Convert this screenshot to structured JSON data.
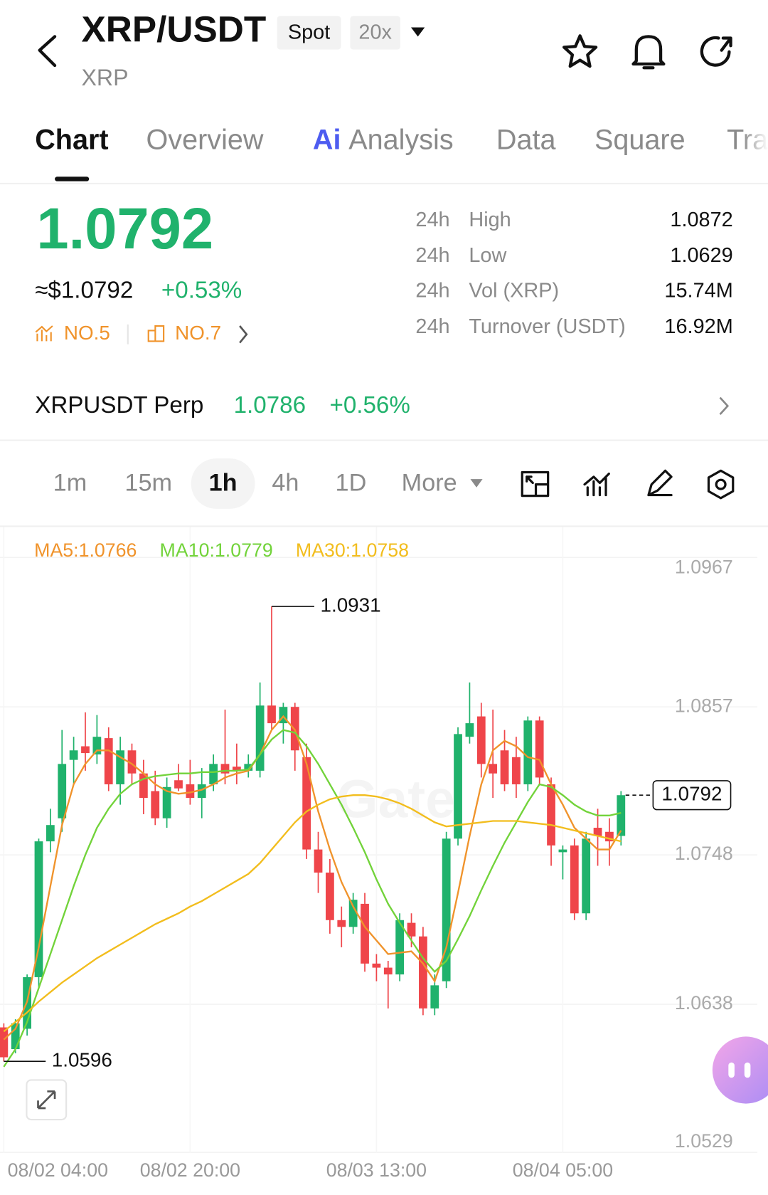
{
  "header": {
    "title": "XRP/USDT",
    "badges": [
      "Spot",
      "20x"
    ],
    "subtitle": "XRP"
  },
  "tabs": {
    "items": [
      "Chart",
      "Overview",
      "Analysis",
      "Data",
      "Square",
      "Tra"
    ],
    "ai_badge": "Ai"
  },
  "price": {
    "last": "1.0792",
    "usd": "≈$1.0792",
    "change": "+0.53%",
    "ranks": [
      "NO.5",
      "NO.7"
    ]
  },
  "stats": {
    "rows": [
      [
        "24h",
        "High",
        "1.0872"
      ],
      [
        "24h",
        "Low",
        "1.0629"
      ],
      [
        "24h",
        "Vol (XRP)",
        "15.74M"
      ],
      [
        "24h",
        "Turnover (USDT)",
        "16.92M"
      ]
    ]
  },
  "perp": {
    "name": "XRPUSDT Perp",
    "price": "1.0786",
    "change": "+0.56%"
  },
  "intervals": {
    "items": [
      "1m",
      "15m",
      "1h",
      "4h",
      "1D",
      "More"
    ],
    "active": 2
  },
  "chart": {
    "type": "candlestick",
    "watermark": "Gate",
    "up_color": "#20b26c",
    "down_color": "#ef454a",
    "ylim": [
      1.0529,
      1.0967
    ],
    "yticks": [
      1.0529,
      1.0638,
      1.0748,
      1.0857,
      1.0967
    ],
    "grid": true,
    "categories": [
      "08/02 04:00",
      null,
      null,
      null,
      null,
      null,
      null,
      null,
      null,
      null,
      null,
      null,
      null,
      null,
      null,
      null,
      "08/02 20:00",
      null,
      null,
      null,
      null,
      null,
      null,
      null,
      null,
      null,
      null,
      null,
      null,
      null,
      null,
      null,
      "08/03 13:00",
      null,
      null,
      null,
      null,
      null,
      null,
      null,
      null,
      null,
      null,
      null,
      null,
      null,
      null,
      null,
      "08/04 05:00",
      null,
      null,
      null,
      null,
      null
    ],
    "candles": [
      {
        "open": 1.0621,
        "high": 1.0624,
        "low": 1.0596,
        "close": 1.0599
      },
      {
        "open": 1.0605,
        "high": 1.0627,
        "low": 1.0602,
        "close": 1.0624
      },
      {
        "open": 1.062,
        "high": 1.066,
        "low": 1.0615,
        "close": 1.0658
      },
      {
        "open": 1.0658,
        "high": 1.076,
        "low": 1.065,
        "close": 1.0758
      },
      {
        "open": 1.0758,
        "high": 1.0782,
        "low": 1.075,
        "close": 1.077
      },
      {
        "open": 1.0775,
        "high": 1.084,
        "low": 1.0765,
        "close": 1.0815
      },
      {
        "open": 1.0818,
        "high": 1.0835,
        "low": 1.08,
        "close": 1.0825
      },
      {
        "open": 1.0828,
        "high": 1.0853,
        "low": 1.081,
        "close": 1.0823
      },
      {
        "open": 1.0822,
        "high": 1.0851,
        "low": 1.0815,
        "close": 1.0835
      },
      {
        "open": 1.0834,
        "high": 1.0842,
        "low": 1.0795,
        "close": 1.08
      },
      {
        "open": 1.08,
        "high": 1.0835,
        "low": 1.0785,
        "close": 1.0825
      },
      {
        "open": 1.0825,
        "high": 1.083,
        "low": 1.08,
        "close": 1.0808
      },
      {
        "open": 1.0808,
        "high": 1.0818,
        "low": 1.0778,
        "close": 1.079
      },
      {
        "open": 1.0795,
        "high": 1.081,
        "low": 1.077,
        "close": 1.0775
      },
      {
        "open": 1.0775,
        "high": 1.0805,
        "low": 1.0768,
        "close": 1.0798
      },
      {
        "open": 1.0803,
        "high": 1.0815,
        "low": 1.0795,
        "close": 1.0797
      },
      {
        "open": 1.08,
        "high": 1.0818,
        "low": 1.0785,
        "close": 1.079
      },
      {
        "open": 1.079,
        "high": 1.0812,
        "low": 1.0775,
        "close": 1.08
      },
      {
        "open": 1.08,
        "high": 1.0822,
        "low": 1.0795,
        "close": 1.0815
      },
      {
        "open": 1.0815,
        "high": 1.0855,
        "low": 1.08,
        "close": 1.0808
      },
      {
        "open": 1.0813,
        "high": 1.083,
        "low": 1.08,
        "close": 1.081
      },
      {
        "open": 1.081,
        "high": 1.0822,
        "low": 1.0805,
        "close": 1.0815
      },
      {
        "open": 1.081,
        "high": 1.0875,
        "low": 1.0805,
        "close": 1.0858
      },
      {
        "open": 1.0858,
        "high": 1.0931,
        "low": 1.084,
        "close": 1.0845
      },
      {
        "open": 1.0845,
        "high": 1.086,
        "low": 1.083,
        "close": 1.0857
      },
      {
        "open": 1.0857,
        "high": 1.086,
        "low": 1.081,
        "close": 1.0825
      },
      {
        "open": 1.082,
        "high": 1.083,
        "low": 1.0745,
        "close": 1.0752
      },
      {
        "open": 1.0752,
        "high": 1.0765,
        "low": 1.072,
        "close": 1.0735
      },
      {
        "open": 1.0735,
        "high": 1.0745,
        "low": 1.069,
        "close": 1.07
      },
      {
        "open": 1.07,
        "high": 1.071,
        "low": 1.068,
        "close": 1.0695
      },
      {
        "open": 1.0695,
        "high": 1.072,
        "low": 1.069,
        "close": 1.0715
      },
      {
        "open": 1.0712,
        "high": 1.072,
        "low": 1.0662,
        "close": 1.0668
      },
      {
        "open": 1.0668,
        "high": 1.0675,
        "low": 1.0655,
        "close": 1.0665
      },
      {
        "open": 1.0665,
        "high": 1.067,
        "low": 1.0635,
        "close": 1.066
      },
      {
        "open": 1.066,
        "high": 1.0705,
        "low": 1.0655,
        "close": 1.07
      },
      {
        "open": 1.0698,
        "high": 1.0705,
        "low": 1.068,
        "close": 1.0688
      },
      {
        "open": 1.0688,
        "high": 1.0695,
        "low": 1.063,
        "close": 1.0635
      },
      {
        "open": 1.0635,
        "high": 1.066,
        "low": 1.063,
        "close": 1.0652
      },
      {
        "open": 1.0655,
        "high": 1.0765,
        "low": 1.065,
        "close": 1.076
      },
      {
        "open": 1.076,
        "high": 1.0842,
        "low": 1.0755,
        "close": 1.0837
      },
      {
        "open": 1.0835,
        "high": 1.0875,
        "low": 1.083,
        "close": 1.0845
      },
      {
        "open": 1.085,
        "high": 1.086,
        "low": 1.0805,
        "close": 1.0815
      },
      {
        "open": 1.0815,
        "high": 1.0855,
        "low": 1.079,
        "close": 1.0808
      },
      {
        "open": 1.0825,
        "high": 1.084,
        "low": 1.0795,
        "close": 1.08
      },
      {
        "open": 1.082,
        "high": 1.0835,
        "low": 1.079,
        "close": 1.08
      },
      {
        "open": 1.08,
        "high": 1.085,
        "low": 1.0795,
        "close": 1.0847
      },
      {
        "open": 1.0847,
        "high": 1.085,
        "low": 1.08,
        "close": 1.0805
      },
      {
        "open": 1.08,
        "high": 1.0805,
        "low": 1.074,
        "close": 1.0755
      },
      {
        "open": 1.075,
        "high": 1.0755,
        "low": 1.073,
        "close": 1.0752
      },
      {
        "open": 1.0755,
        "high": 1.076,
        "low": 1.07,
        "close": 1.0705
      },
      {
        "open": 1.0705,
        "high": 1.0765,
        "low": 1.07,
        "close": 1.076
      },
      {
        "open": 1.0768,
        "high": 1.0782,
        "low": 1.074,
        "close": 1.0762
      },
      {
        "open": 1.0765,
        "high": 1.0775,
        "low": 1.074,
        "close": 1.0758
      },
      {
        "open": 1.0762,
        "high": 1.0795,
        "low": 1.0755,
        "close": 1.0792
      }
    ],
    "series": [
      {
        "name": "MA5:1.0766",
        "color": "#f0932b",
        "values": [
          1.0612,
          1.062,
          1.064,
          1.068,
          1.0725,
          1.077,
          1.08,
          1.0815,
          1.0825,
          1.0825,
          1.082,
          1.0815,
          1.0808,
          1.08,
          1.0795,
          1.0793,
          1.0794,
          1.0796,
          1.08,
          1.0805,
          1.0808,
          1.081,
          1.0822,
          1.084,
          1.085,
          1.084,
          1.0815,
          1.078,
          1.0752,
          1.0728,
          1.071,
          1.0695,
          1.0685,
          1.0675,
          1.0676,
          1.0677,
          1.0668,
          1.0655,
          1.068,
          1.072,
          1.0762,
          1.08,
          1.0825,
          1.0832,
          1.0828,
          1.082,
          1.0818,
          1.08,
          1.0785,
          1.0768,
          1.076,
          1.0752,
          1.0752,
          1.0766
        ]
      },
      {
        "name": "MA10:1.0779",
        "color": "#72d33a",
        "values": [
          1.0592,
          1.0605,
          1.0625,
          1.065,
          1.0675,
          1.07,
          1.0725,
          1.0748,
          1.0768,
          1.0782,
          1.0793,
          1.08,
          1.0804,
          1.0806,
          1.0807,
          1.0808,
          1.0808,
          1.0809,
          1.0809,
          1.081,
          1.081,
          1.0811,
          1.0822,
          1.0833,
          1.084,
          1.0838,
          1.0828,
          1.0815,
          1.08,
          1.0785,
          1.0768,
          1.075,
          1.073,
          1.0712,
          1.0698,
          1.0685,
          1.0672,
          1.0662,
          1.067,
          1.0686,
          1.0703,
          1.0722,
          1.074,
          1.0757,
          1.0772,
          1.0787,
          1.08,
          1.0798,
          1.0792,
          1.0785,
          1.078,
          1.0777,
          1.0777,
          1.0779
        ]
      },
      {
        "name": "MA30:1.0758",
        "color": "#f2bd1d",
        "values": [
          1.0618,
          1.0625,
          1.0632,
          1.064,
          1.0647,
          1.0654,
          1.066,
          1.0666,
          1.0672,
          1.0677,
          1.0682,
          1.0687,
          1.0692,
          1.0697,
          1.0701,
          1.0705,
          1.071,
          1.0714,
          1.0719,
          1.0724,
          1.0729,
          1.0734,
          1.0742,
          1.0752,
          1.0762,
          1.0772,
          1.078,
          1.0785,
          1.0789,
          1.0791,
          1.0792,
          1.0792,
          1.0791,
          1.0789,
          1.0786,
          1.0782,
          1.0777,
          1.0772,
          1.0769,
          1.077,
          1.0771,
          1.0772,
          1.0773,
          1.0773,
          1.0773,
          1.0772,
          1.0771,
          1.077,
          1.0768,
          1.0766,
          1.0764,
          1.0762,
          1.076,
          1.0758
        ]
      }
    ]
  }
}
